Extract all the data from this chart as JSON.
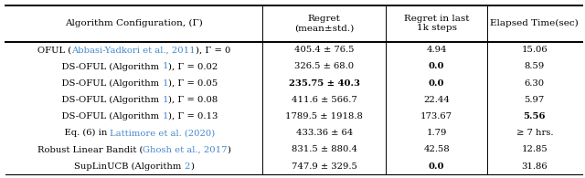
{
  "figsize": [
    6.4,
    1.95
  ],
  "dpi": 100,
  "col_headers": [
    "Algorithm Configuration, (Γ)",
    "Regret\n(mean±std.)",
    "Regret in last\n1k steps",
    "Elapsed Time(sec)"
  ],
  "rows": [
    {
      "col0_parts": [
        {
          "text": "OFUL (",
          "color": "black",
          "bold": false
        },
        {
          "text": "Abbasi-Yadkori et al., 2011",
          "color": "#4488cc",
          "bold": false
        },
        {
          "text": "), Γ = 0",
          "color": "black",
          "bold": false
        }
      ],
      "col1": {
        "text": "405.4 ± 76.5",
        "bold": false
      },
      "col2": {
        "text": "4.94",
        "bold": false
      },
      "col3": {
        "text": "15.06",
        "bold": false
      }
    },
    {
      "col0_parts": [
        {
          "text": "    DS-OFUL (Algorithm ",
          "color": "black",
          "bold": false
        },
        {
          "text": "1",
          "color": "#4488cc",
          "bold": false
        },
        {
          "text": "), Γ = 0.02",
          "color": "black",
          "bold": false
        }
      ],
      "col1": {
        "text": "326.5 ± 68.0",
        "bold": false
      },
      "col2": {
        "text": "0.0",
        "bold": true
      },
      "col3": {
        "text": "8.59",
        "bold": false
      }
    },
    {
      "col0_parts": [
        {
          "text": "    DS-OFUL (Algorithm ",
          "color": "black",
          "bold": false
        },
        {
          "text": "1",
          "color": "#4488cc",
          "bold": false
        },
        {
          "text": "), Γ = 0.05",
          "color": "black",
          "bold": false
        }
      ],
      "col1": {
        "text": "235.75 ± 40.3",
        "bold": true
      },
      "col2": {
        "text": "0.0",
        "bold": true
      },
      "col3": {
        "text": "6.30",
        "bold": false
      }
    },
    {
      "col0_parts": [
        {
          "text": "    DS-OFUL (Algorithm ",
          "color": "black",
          "bold": false
        },
        {
          "text": "1",
          "color": "#4488cc",
          "bold": false
        },
        {
          "text": "), Γ = 0.08",
          "color": "black",
          "bold": false
        }
      ],
      "col1": {
        "text": "411.6 ± 566.7",
        "bold": false
      },
      "col2": {
        "text": "22.44",
        "bold": false
      },
      "col3": {
        "text": "5.97",
        "bold": false
      }
    },
    {
      "col0_parts": [
        {
          "text": "    DS-OFUL (Algorithm ",
          "color": "black",
          "bold": false
        },
        {
          "text": "1",
          "color": "#4488cc",
          "bold": false
        },
        {
          "text": "), Γ = 0.13",
          "color": "black",
          "bold": false
        }
      ],
      "col1": {
        "text": "1789.5 ± 1918.8",
        "bold": false
      },
      "col2": {
        "text": "173.67",
        "bold": false
      },
      "col3": {
        "text": "5.56",
        "bold": true
      }
    },
    {
      "col0_parts": [
        {
          "text": "    Eq. (6) in ",
          "color": "black",
          "bold": false
        },
        {
          "text": "Lattimore et al. (2020)",
          "color": "#4488cc",
          "bold": false
        }
      ],
      "col1": {
        "text": "433.36 ± 64",
        "bold": false
      },
      "col2": {
        "text": "1.79",
        "bold": false
      },
      "col3": {
        "text": "≥ 7 hrs.",
        "bold": false
      }
    },
    {
      "col0_parts": [
        {
          "text": "Robust Linear Bandit (",
          "color": "black",
          "bold": false
        },
        {
          "text": "Ghosh et al., 2017",
          "color": "#4488cc",
          "bold": false
        },
        {
          "text": ")",
          "color": "black",
          "bold": false
        }
      ],
      "col1": {
        "text": "831.5 ± 880.4",
        "bold": false
      },
      "col2": {
        "text": "42.58",
        "bold": false
      },
      "col3": {
        "text": "12.85",
        "bold": false
      }
    },
    {
      "col0_parts": [
        {
          "text": "SupLinUCB (Algorithm ",
          "color": "black",
          "bold": false
        },
        {
          "text": "2",
          "color": "#4488cc",
          "bold": false
        },
        {
          "text": ")",
          "color": "black",
          "bold": false
        }
      ],
      "col1": {
        "text": "747.9 ± 329.5",
        "bold": false
      },
      "col2": {
        "text": "0.0",
        "bold": true
      },
      "col3": {
        "text": "31.86",
        "bold": false
      }
    }
  ],
  "font_size": 7.2,
  "header_font_size": 7.5
}
